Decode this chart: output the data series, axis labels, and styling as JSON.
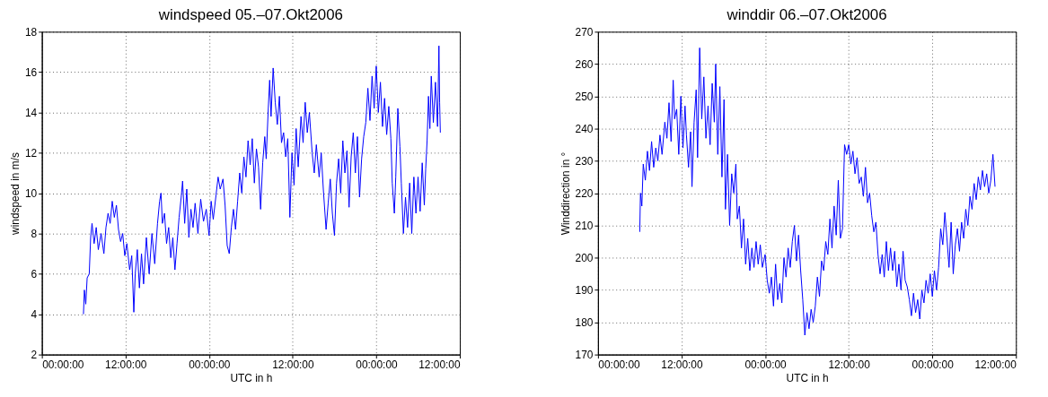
{
  "chart_data": [
    {
      "type": "line",
      "title": "windspeed 05.–07.Okt2006",
      "xlabel": "UTC in h",
      "ylabel": "windspeed in m/s",
      "color": "#0000ff",
      "grid": true,
      "marker": "none",
      "line_style": "solid",
      "xlim": [
        "2006-10-05T00:00",
        "2006-10-07T12:00"
      ],
      "xticks": [
        {
          "value": "2006-10-05T00:00",
          "label": "00:00:00"
        },
        {
          "value": "2006-10-05T12:00",
          "label": "12:00:00"
        },
        {
          "value": "2006-10-06T00:00",
          "label": "00:00:00"
        },
        {
          "value": "2006-10-06T12:00",
          "label": "12:00:00"
        },
        {
          "value": "2006-10-07T00:00",
          "label": "00:00:00"
        },
        {
          "value": "2006-10-07T12:00",
          "label": "12:00:00"
        }
      ],
      "ylim": [
        2,
        18
      ],
      "yticks": [
        2,
        4,
        6,
        8,
        10,
        12,
        14,
        16,
        18
      ],
      "x": [
        "2006-10-05T05:58",
        "2006-10-05T06:06",
        "2006-10-05T06:18",
        "2006-10-05T06:30",
        "2006-10-05T06:48",
        "2006-10-05T07:00",
        "2006-10-05T07:12",
        "2006-10-05T07:30",
        "2006-10-05T07:48",
        "2006-10-05T08:06",
        "2006-10-05T08:30",
        "2006-10-05T08:54",
        "2006-10-05T09:12",
        "2006-10-05T09:30",
        "2006-10-05T09:48",
        "2006-10-05T10:06",
        "2006-10-05T10:24",
        "2006-10-05T10:42",
        "2006-10-05T11:00",
        "2006-10-05T11:18",
        "2006-10-05T11:36",
        "2006-10-05T11:54",
        "2006-10-05T12:12",
        "2006-10-05T12:36",
        "2006-10-05T12:54",
        "2006-10-05T13:12",
        "2006-10-05T13:24",
        "2006-10-05T13:42",
        "2006-10-05T14:00",
        "2006-10-05T14:18",
        "2006-10-05T14:36",
        "2006-10-05T15:00",
        "2006-10-05T15:24",
        "2006-10-05T15:48",
        "2006-10-05T16:12",
        "2006-10-05T16:36",
        "2006-10-05T16:54",
        "2006-10-05T17:06",
        "2006-10-05T17:18",
        "2006-10-05T17:36",
        "2006-10-05T17:54",
        "2006-10-05T18:12",
        "2006-10-05T18:30",
        "2006-10-05T18:48",
        "2006-10-05T19:06",
        "2006-10-05T19:24",
        "2006-10-05T19:42",
        "2006-10-05T20:00",
        "2006-10-05T20:12",
        "2006-10-05T20:30",
        "2006-10-05T20:48",
        "2006-10-05T21:06",
        "2006-10-05T21:24",
        "2006-10-05T21:42",
        "2006-10-05T22:00",
        "2006-10-05T22:24",
        "2006-10-05T22:48",
        "2006-10-05T23:12",
        "2006-10-05T23:36",
        "2006-10-06T00:00",
        "2006-10-06T00:18",
        "2006-10-06T00:36",
        "2006-10-06T01:00",
        "2006-10-06T01:18",
        "2006-10-06T01:36",
        "2006-10-06T02:00",
        "2006-10-06T02:18",
        "2006-10-06T02:36",
        "2006-10-06T02:54",
        "2006-10-06T03:12",
        "2006-10-06T03:30",
        "2006-10-06T03:48",
        "2006-10-06T04:06",
        "2006-10-06T04:24",
        "2006-10-06T04:42",
        "2006-10-06T05:00",
        "2006-10-06T05:18",
        "2006-10-06T05:36",
        "2006-10-06T05:54",
        "2006-10-06T06:12",
        "2006-10-06T06:30",
        "2006-10-06T06:48",
        "2006-10-06T07:06",
        "2006-10-06T07:24",
        "2006-10-06T07:42",
        "2006-10-06T08:00",
        "2006-10-06T08:12",
        "2006-10-06T08:30",
        "2006-10-06T08:42",
        "2006-10-06T08:54",
        "2006-10-06T09:12",
        "2006-10-06T09:30",
        "2006-10-06T09:48",
        "2006-10-06T10:06",
        "2006-10-06T10:24",
        "2006-10-06T10:42",
        "2006-10-06T11:00",
        "2006-10-06T11:18",
        "2006-10-06T11:36",
        "2006-10-06T11:54",
        "2006-10-06T12:12",
        "2006-10-06T12:30",
        "2006-10-06T12:48",
        "2006-10-06T13:12",
        "2006-10-06T13:30",
        "2006-10-06T13:48",
        "2006-10-06T14:06",
        "2006-10-06T14:24",
        "2006-10-06T14:48",
        "2006-10-06T15:06",
        "2006-10-06T15:24",
        "2006-10-06T15:48",
        "2006-10-06T16:06",
        "2006-10-06T16:24",
        "2006-10-06T16:48",
        "2006-10-06T17:06",
        "2006-10-06T17:24",
        "2006-10-06T17:42",
        "2006-10-06T18:00",
        "2006-10-06T18:18",
        "2006-10-06T18:36",
        "2006-10-06T18:54",
        "2006-10-06T19:12",
        "2006-10-06T19:30",
        "2006-10-06T19:48",
        "2006-10-06T20:06",
        "2006-10-06T20:24",
        "2006-10-06T20:42",
        "2006-10-06T21:00",
        "2006-10-06T21:18",
        "2006-10-06T21:36",
        "2006-10-06T21:54",
        "2006-10-06T22:12",
        "2006-10-06T22:30",
        "2006-10-06T22:48",
        "2006-10-06T23:06",
        "2006-10-06T23:24",
        "2006-10-06T23:42",
        "2006-10-07T00:00",
        "2006-10-07T00:18",
        "2006-10-07T00:36",
        "2006-10-07T00:54",
        "2006-10-07T01:12",
        "2006-10-07T01:30",
        "2006-10-07T01:48",
        "2006-10-07T02:06",
        "2006-10-07T02:18",
        "2006-10-07T02:36",
        "2006-10-07T02:48",
        "2006-10-07T03:06",
        "2006-10-07T03:24",
        "2006-10-07T03:36",
        "2006-10-07T03:54",
        "2006-10-07T04:12",
        "2006-10-07T04:30",
        "2006-10-07T04:48",
        "2006-10-07T05:06",
        "2006-10-07T05:24",
        "2006-10-07T05:42",
        "2006-10-07T06:00",
        "2006-10-07T06:18",
        "2006-10-07T06:36",
        "2006-10-07T06:54",
        "2006-10-07T07:06",
        "2006-10-07T07:18",
        "2006-10-07T07:30",
        "2006-10-07T07:42",
        "2006-10-07T07:54",
        "2006-10-07T08:12",
        "2006-10-07T08:30",
        "2006-10-07T08:48",
        "2006-10-07T09:00",
        "2006-10-07T09:06",
        "2006-10-07T09:12"
      ],
      "values": [
        4.0,
        5.2,
        4.5,
        5.8,
        6.0,
        7.8,
        8.5,
        7.5,
        8.3,
        7.2,
        8.0,
        7.0,
        8.3,
        9.0,
        8.5,
        9.6,
        8.8,
        9.4,
        8.2,
        7.6,
        8.0,
        6.9,
        7.5,
        6.2,
        6.9,
        4.1,
        6.0,
        7.2,
        5.3,
        7.0,
        5.5,
        7.8,
        6.0,
        8.0,
        6.5,
        8.5,
        9.6,
        10.0,
        8.5,
        9.0,
        7.5,
        8.3,
        6.8,
        7.8,
        6.2,
        7.5,
        8.8,
        9.8,
        10.6,
        8.5,
        10.2,
        7.8,
        9.2,
        8.3,
        9.5,
        8.0,
        9.7,
        8.6,
        9.2,
        7.9,
        9.6,
        8.7,
        9.9,
        10.8,
        10.2,
        10.7,
        9.4,
        7.4,
        7.0,
        8.3,
        9.2,
        8.2,
        9.6,
        11.0,
        10.0,
        11.8,
        10.8,
        12.6,
        11.4,
        12.7,
        10.5,
        12.2,
        11.3,
        9.2,
        11.5,
        12.8,
        11.7,
        14.2,
        15.6,
        13.8,
        16.2,
        14.5,
        13.4,
        14.8,
        12.5,
        13.0,
        11.8,
        12.7,
        8.8,
        12.0,
        10.4,
        13.2,
        11.3,
        13.8,
        12.5,
        14.5,
        13.0,
        14.0,
        12.0,
        11.0,
        12.4,
        10.8,
        12.0,
        10.2,
        8.2,
        9.5,
        10.7,
        9.0,
        7.9,
        10.5,
        11.7,
        10.0,
        12.6,
        11.0,
        12.1,
        9.3,
        11.8,
        13.0,
        11.0,
        12.8,
        9.8,
        11.7,
        12.8,
        13.5,
        15.2,
        13.6,
        15.8,
        14.2,
        16.3,
        14.0,
        15.5,
        13.3,
        14.7,
        12.9,
        14.3,
        12.7,
        10.5,
        9.0,
        10.8,
        14.2,
        12.3,
        10.5,
        8.0,
        9.8,
        8.3,
        10.5,
        8.0,
        10.8,
        9.0,
        10.8,
        9.1,
        11.5,
        9.4,
        11.2,
        12.6,
        14.8,
        13.2,
        15.8,
        13.5,
        15.5,
        13.3,
        17.3,
        14.5,
        13.0
      ]
    },
    {
      "type": "line",
      "title": "winddir 06.–07.Okt2006",
      "xlabel": "UTC in h",
      "ylabel": "Winddirection in °",
      "color": "#0000ff",
      "grid": true,
      "marker": "none",
      "line_style": "solid",
      "xlim": [
        "2006-10-05T00:00",
        "2006-10-07T12:00"
      ],
      "xticks": [
        {
          "value": "2006-10-05T00:00",
          "label": "00:00:00"
        },
        {
          "value": "2006-10-05T12:00",
          "label": "12:00:00"
        },
        {
          "value": "2006-10-06T00:00",
          "label": "00:00:00"
        },
        {
          "value": "2006-10-06T12:00",
          "label": "12:00:00"
        },
        {
          "value": "2006-10-07T00:00",
          "label": "00:00:00"
        },
        {
          "value": "2006-10-07T12:00",
          "label": "12:00:00"
        }
      ],
      "ylim": [
        170,
        270
      ],
      "yticks": [
        170,
        180,
        190,
        200,
        210,
        220,
        230,
        240,
        250,
        260,
        270
      ],
      "x": [
        "2006-10-05T06:00",
        "2006-10-05T06:06",
        "2006-10-05T06:18",
        "2006-10-05T06:30",
        "2006-10-05T06:48",
        "2006-10-05T07:06",
        "2006-10-05T07:24",
        "2006-10-05T07:42",
        "2006-10-05T08:00",
        "2006-10-05T08:18",
        "2006-10-05T08:36",
        "2006-10-05T08:54",
        "2006-10-05T09:12",
        "2006-10-05T09:36",
        "2006-10-05T09:54",
        "2006-10-05T10:12",
        "2006-10-05T10:30",
        "2006-10-05T10:48",
        "2006-10-05T11:00",
        "2006-10-05T11:18",
        "2006-10-05T11:36",
        "2006-10-05T11:54",
        "2006-10-05T12:12",
        "2006-10-05T12:30",
        "2006-10-05T12:42",
        "2006-10-05T13:00",
        "2006-10-05T13:18",
        "2006-10-05T13:30",
        "2006-10-05T13:48",
        "2006-10-05T14:06",
        "2006-10-05T14:18",
        "2006-10-05T14:36",
        "2006-10-05T14:54",
        "2006-10-05T15:12",
        "2006-10-05T15:30",
        "2006-10-05T15:48",
        "2006-10-05T16:06",
        "2006-10-05T16:24",
        "2006-10-05T16:42",
        "2006-10-05T16:54",
        "2006-10-05T17:12",
        "2006-10-05T17:30",
        "2006-10-05T17:48",
        "2006-10-05T18:06",
        "2006-10-05T18:18",
        "2006-10-05T18:36",
        "2006-10-05T18:54",
        "2006-10-05T19:12",
        "2006-10-05T19:30",
        "2006-10-05T19:48",
        "2006-10-05T20:00",
        "2006-10-05T20:18",
        "2006-10-05T20:36",
        "2006-10-05T20:54",
        "2006-10-05T21:12",
        "2006-10-05T21:30",
        "2006-10-05T21:48",
        "2006-10-05T22:06",
        "2006-10-05T22:24",
        "2006-10-05T22:42",
        "2006-10-05T23:00",
        "2006-10-05T23:18",
        "2006-10-05T23:36",
        "2006-10-06T00:00",
        "2006-10-06T00:18",
        "2006-10-06T00:36",
        "2006-10-06T00:54",
        "2006-10-06T01:12",
        "2006-10-06T01:30",
        "2006-10-06T01:48",
        "2006-10-06T02:06",
        "2006-10-06T02:24",
        "2006-10-06T02:42",
        "2006-10-06T03:00",
        "2006-10-06T03:18",
        "2006-10-06T03:36",
        "2006-10-06T03:54",
        "2006-10-06T04:12",
        "2006-10-06T04:30",
        "2006-10-06T04:48",
        "2006-10-06T05:06",
        "2006-10-06T05:24",
        "2006-10-06T05:42",
        "2006-10-06T06:00",
        "2006-10-06T06:18",
        "2006-10-06T06:36",
        "2006-10-06T06:54",
        "2006-10-06T07:12",
        "2006-10-06T07:30",
        "2006-10-06T07:48",
        "2006-10-06T08:06",
        "2006-10-06T08:24",
        "2006-10-06T08:42",
        "2006-10-06T09:00",
        "2006-10-06T09:18",
        "2006-10-06T09:36",
        "2006-10-06T09:54",
        "2006-10-06T10:12",
        "2006-10-06T10:30",
        "2006-10-06T10:48",
        "2006-10-06T11:06",
        "2006-10-06T11:24",
        "2006-10-06T11:42",
        "2006-10-06T12:00",
        "2006-10-06T12:18",
        "2006-10-06T12:36",
        "2006-10-06T12:54",
        "2006-10-06T13:12",
        "2006-10-06T13:30",
        "2006-10-06T13:48",
        "2006-10-06T14:06",
        "2006-10-06T14:24",
        "2006-10-06T14:42",
        "2006-10-06T15:00",
        "2006-10-06T15:18",
        "2006-10-06T15:36",
        "2006-10-06T15:54",
        "2006-10-06T16:12",
        "2006-10-06T16:30",
        "2006-10-06T16:48",
        "2006-10-06T17:06",
        "2006-10-06T17:24",
        "2006-10-06T17:42",
        "2006-10-06T18:00",
        "2006-10-06T18:18",
        "2006-10-06T18:36",
        "2006-10-06T18:54",
        "2006-10-06T19:12",
        "2006-10-06T19:30",
        "2006-10-06T19:48",
        "2006-10-06T20:06",
        "2006-10-06T20:24",
        "2006-10-06T20:42",
        "2006-10-06T21:00",
        "2006-10-06T21:18",
        "2006-10-06T21:36",
        "2006-10-06T21:54",
        "2006-10-06T22:12",
        "2006-10-06T22:30",
        "2006-10-06T22:48",
        "2006-10-06T23:06",
        "2006-10-06T23:24",
        "2006-10-06T23:42",
        "2006-10-07T00:00",
        "2006-10-07T00:18",
        "2006-10-07T00:36",
        "2006-10-07T00:54",
        "2006-10-07T01:12",
        "2006-10-07T01:30",
        "2006-10-07T01:48",
        "2006-10-07T02:06",
        "2006-10-07T02:24",
        "2006-10-07T02:42",
        "2006-10-07T03:00",
        "2006-10-07T03:18",
        "2006-10-07T03:36",
        "2006-10-07T03:54",
        "2006-10-07T04:12",
        "2006-10-07T04:30",
        "2006-10-07T04:48",
        "2006-10-07T05:06",
        "2006-10-07T05:24",
        "2006-10-07T05:42",
        "2006-10-07T06:00",
        "2006-10-07T06:18",
        "2006-10-07T06:36",
        "2006-10-07T06:54",
        "2006-10-07T07:12",
        "2006-10-07T07:30",
        "2006-10-07T07:48",
        "2006-10-07T08:06",
        "2006-10-07T08:24",
        "2006-10-07T08:42",
        "2006-10-07T09:00"
      ],
      "values": [
        208,
        220,
        216,
        229,
        224,
        233,
        227,
        236,
        228,
        234,
        230,
        238,
        232,
        242,
        237,
        248,
        236,
        255,
        243,
        246,
        232,
        250,
        234,
        247,
        238,
        228,
        239,
        222,
        242,
        252,
        231,
        265,
        243,
        256,
        237,
        247,
        235,
        254,
        242,
        260,
        232,
        253,
        225,
        249,
        215,
        232,
        210,
        226,
        220,
        229,
        212,
        216,
        203,
        212,
        198,
        206,
        196,
        203,
        197,
        205,
        198,
        204,
        197,
        201,
        193,
        189,
        194,
        185,
        198,
        187,
        192,
        186,
        200,
        194,
        203,
        197,
        205,
        210,
        199,
        207,
        196,
        187,
        176,
        183,
        178,
        184,
        180,
        185,
        194,
        188,
        199,
        196,
        205,
        201,
        212,
        203,
        216,
        207,
        224,
        206,
        209,
        235,
        232,
        235,
        229,
        233,
        226,
        231,
        223,
        225,
        219,
        228,
        217,
        220,
        213,
        208,
        211,
        201,
        195,
        201,
        194,
        205,
        196,
        203,
        196,
        202,
        191,
        198,
        190,
        202,
        193,
        191,
        187,
        182,
        189,
        183,
        187,
        181,
        190,
        186,
        193,
        189,
        195,
        188,
        196,
        190,
        197,
        209,
        204,
        214,
        206,
        197,
        211,
        195,
        204,
        209,
        202,
        211,
        206,
        215,
        210,
        219,
        215,
        223,
        218,
        225,
        221,
        227,
        222,
        226,
        220,
        224,
        232,
        222
      ]
    }
  ]
}
